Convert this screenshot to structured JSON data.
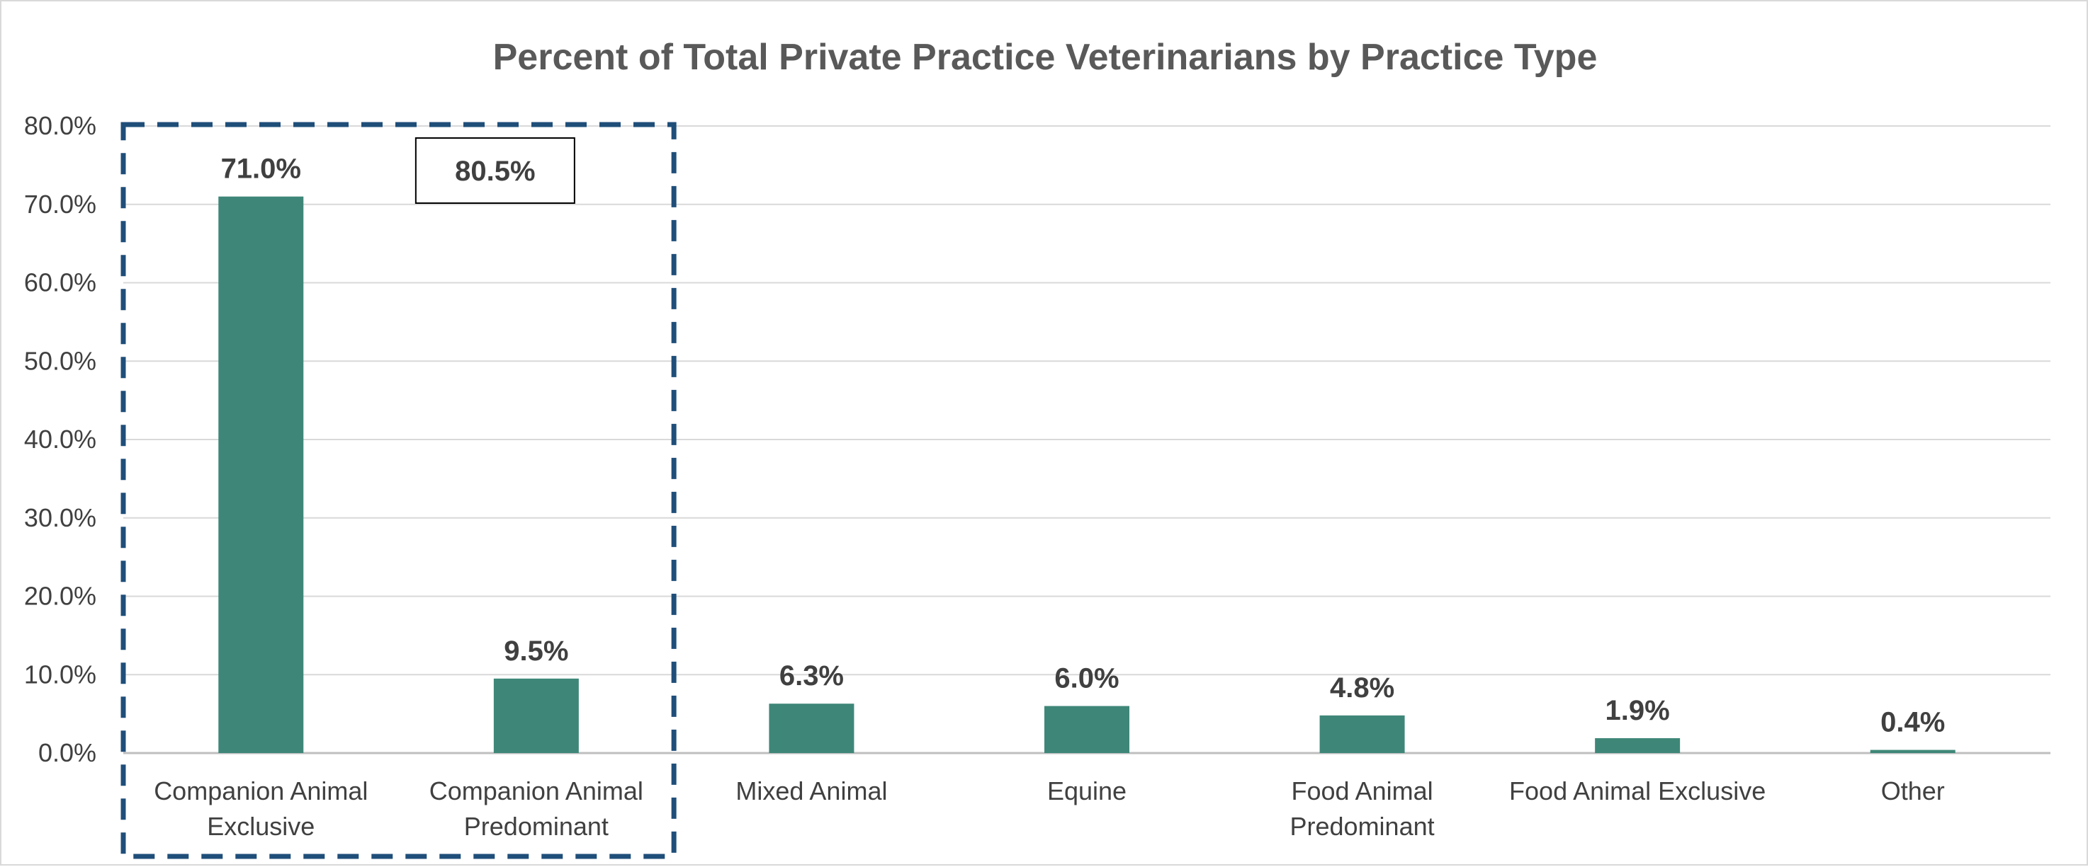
{
  "chart_data": {
    "type": "bar",
    "title": "Percent of Total Private Practice Veterinarians by Practice Type",
    "xlabel": "",
    "ylabel": "",
    "categories": [
      [
        "Companion Animal",
        "Exclusive"
      ],
      [
        "Companion Animal",
        "Predominant"
      ],
      [
        "Mixed Animal"
      ],
      [
        "Equine"
      ],
      [
        "Food Animal",
        "Predominant"
      ],
      [
        "Food Animal Exclusive"
      ],
      [
        "Other"
      ]
    ],
    "values": [
      71.0,
      9.5,
      6.3,
      6.0,
      4.8,
      1.9,
      0.4
    ],
    "value_labels": [
      "71.0%",
      "9.5%",
      "6.3%",
      "6.0%",
      "4.8%",
      "1.9%",
      "0.4%"
    ],
    "ylim": [
      0,
      80
    ],
    "yticks": [
      0,
      10,
      20,
      30,
      40,
      50,
      60,
      70,
      80
    ],
    "ytick_labels": [
      "0.0%",
      "10.0%",
      "20.0%",
      "30.0%",
      "40.0%",
      "50.0%",
      "60.0%",
      "70.0%",
      "80.0%"
    ],
    "grid": true,
    "bar_color": "#3e8778",
    "callout": {
      "label": "80.5%",
      "category_indices": [
        0,
        1
      ],
      "border_color": "#1f4e79"
    }
  }
}
